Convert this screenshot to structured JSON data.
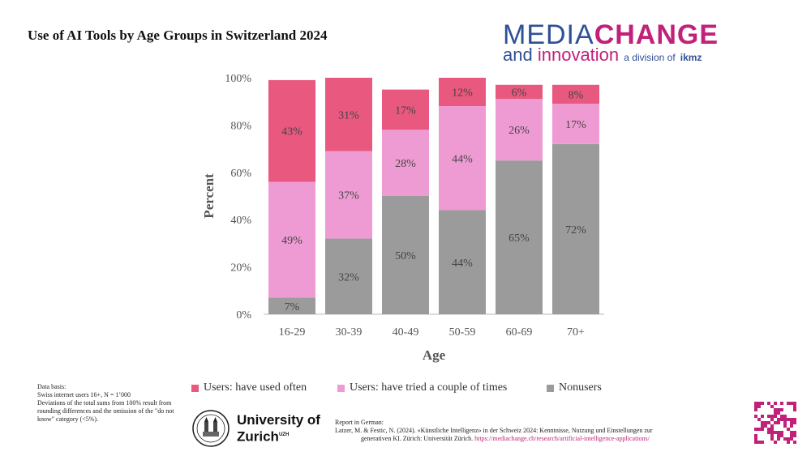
{
  "title": "Use of AI Tools by Age Groups in Switzerland 2024",
  "logo": {
    "part1": "MEDIA",
    "part2": "CHANGE",
    "part3": "and",
    "part4": "innovation",
    "part5": "a division of",
    "part6": "ikmz"
  },
  "colors": {
    "often": "#e8587f",
    "tried": "#ef9bd3",
    "nonusers": "#9b9b9b"
  },
  "chart_data": {
    "type": "bar",
    "stacked": true,
    "categories": [
      "16-29",
      "30-39",
      "40-49",
      "50-59",
      "60-69",
      "70+"
    ],
    "series": [
      {
        "name": "Nonusers",
        "key": "nonusers",
        "values": [
          7,
          32,
          50,
          44,
          65,
          72
        ]
      },
      {
        "name": "Users: have tried a couple of times",
        "key": "tried",
        "values": [
          49,
          37,
          28,
          44,
          26,
          17
        ]
      },
      {
        "name": "Users: have used often",
        "key": "often",
        "values": [
          43,
          31,
          17,
          12,
          6,
          8
        ]
      }
    ],
    "xlabel": "Age",
    "ylabel": "Percent",
    "ylim": [
      0,
      100
    ],
    "yticks": [
      "0%",
      "20%",
      "40%",
      "60%",
      "80%",
      "100%"
    ],
    "legend_position": "bottom",
    "grid": false
  },
  "legend": [
    "Users: have used often",
    "Users: have tried a couple of times",
    "Nonusers"
  ],
  "databasis": [
    "Data basis:",
    "Swiss internet users 16+, N = 1’000",
    "Deviations of the total sums from 100% result from rounding differences and the omission of the \"do not know\" category (<5%)."
  ],
  "university": {
    "line1": "University of",
    "line2": "Zurich",
    "sup": "UZH"
  },
  "report": {
    "heading": "Report in German:",
    "citation1": "Latzer, M. & Festic, N. (2024). «Künstliche Intelligenz» in der Schweiz 2024: Kenntnisse, Nutzung und Einstellungen zur",
    "citation2": "generativen KI. Zürich: Universität Zürich.",
    "link": "https://mediachange.ch/research/artificial-intelligence-applications/"
  }
}
